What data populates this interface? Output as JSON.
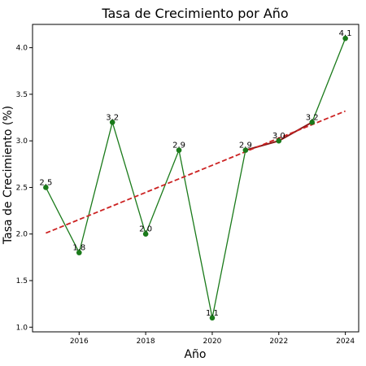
{
  "chart_data": {
    "type": "line",
    "title": "Tasa de Crecimiento por Año",
    "xlabel": "Año",
    "ylabel": "Tasa de Crecimiento (%)",
    "x": [
      2015,
      2016,
      2017,
      2018,
      2019,
      2020,
      2021,
      2022,
      2023,
      2024
    ],
    "series": [
      {
        "values": [
          2.5,
          1.8,
          3.2,
          2.0,
          2.9,
          1.1,
          2.9,
          3.0,
          3.2,
          4.1
        ],
        "labels": [
          "2.5",
          "1.8",
          "3.2",
          "2.0",
          "2.9",
          "1.1",
          "2.9",
          "3.0",
          "3.2",
          "4.1"
        ],
        "color": "#1a7a1a"
      }
    ],
    "trend": {
      "start": [
        2015,
        2.01
      ],
      "end": [
        2024,
        3.32
      ],
      "color": "#cc2222"
    },
    "highlight": {
      "x": [
        2021,
        2022,
        2023
      ],
      "values": [
        2.9,
        3.0,
        3.2
      ],
      "color": "#8b1a1a"
    },
    "xticks": [
      2016,
      2018,
      2020,
      2022,
      2024
    ],
    "xtick_labels": [
      "2016",
      "2018",
      "2020",
      "2022",
      "2024"
    ],
    "yticks": [
      1.0,
      1.5,
      2.0,
      2.5,
      3.0,
      3.5,
      4.0
    ],
    "ytick_labels": [
      "1.0",
      "1.5",
      "2.0",
      "2.5",
      "3.0",
      "3.5",
      "4.0"
    ],
    "xlim": [
      2014.6,
      2024.4
    ],
    "ylim": [
      0.95,
      4.25
    ],
    "grid": false,
    "legend": "none"
  }
}
